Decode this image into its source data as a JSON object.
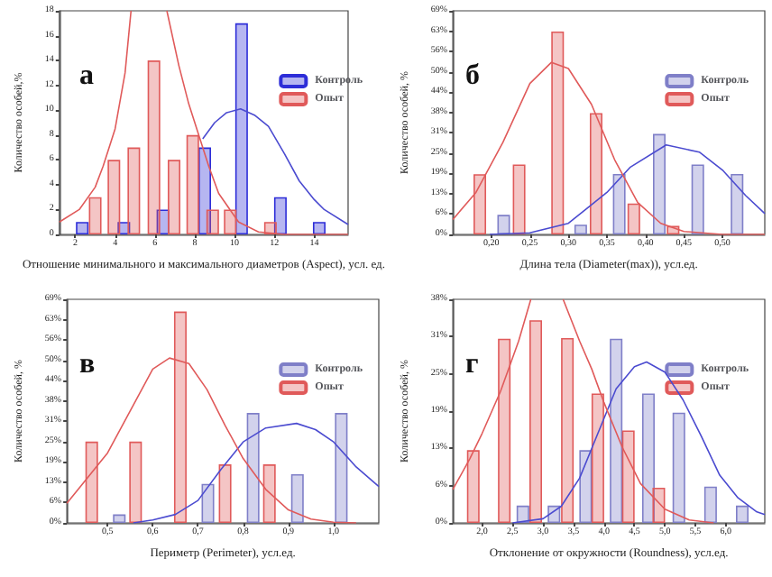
{
  "chart_data": [
    {
      "type": "bar",
      "xlabel": "Отношение минимального и максимального диаметров (Aspect), усл. ед.",
      "ylabel": "Количество особей,%",
      "annotations": [
        "а"
      ],
      "legend": "top right",
      "xlim": [
        1.2,
        15.7
      ],
      "ylim": [
        0,
        18
      ],
      "xticks": [
        2,
        4,
        6,
        8,
        10,
        12,
        14
      ],
      "yticks": [
        0,
        2,
        4,
        6,
        8,
        10,
        12,
        14,
        16,
        18
      ],
      "series": [
        {
          "name": "Контроль",
          "color": "#2d2dd8",
          "x": [
            2.35,
            4.44,
            6.4,
            8.5,
            10.35,
            12.3,
            14.25
          ],
          "values": [
            1,
            1,
            2,
            7,
            17,
            3,
            1
          ]
        },
        {
          "name": "Опыт",
          "color": "#e05a5a",
          "x": [
            3.0,
            3.94,
            4.94,
            5.95,
            6.96,
            7.9,
            8.9,
            9.78,
            11.8
          ],
          "values": [
            3,
            6,
            7,
            14,
            6,
            8,
            2,
            2,
            1
          ]
        },
        {
          "type": "line",
          "color": "#4b4bd0",
          "x": [
            8.4,
            9.0,
            9.6,
            10.3,
            11.0,
            11.7,
            12.5,
            13.25,
            14.0,
            14.5,
            15.7
          ],
          "values": [
            7.7,
            9.0,
            9.8,
            10.1,
            9.6,
            8.7,
            6.5,
            4.3,
            2.8,
            2.0,
            0.8
          ]
        },
        {
          "type": "line",
          "color": "#e05a5a",
          "x": [
            1.2,
            2.2,
            3.0,
            3.4,
            4.0,
            4.5,
            4.8,
            5.7,
            6.6,
            7.2,
            7.7,
            8.2,
            8.7,
            9.2,
            10.2,
            11.2,
            12.5,
            15.7
          ],
          "values": [
            1.0,
            2.0,
            3.8,
            5.5,
            8.5,
            13,
            18,
            null,
            18,
            13.6,
            10.5,
            8,
            5.5,
            3.3,
            1.0,
            0.2,
            0,
            0
          ]
        }
      ]
    },
    {
      "type": "bar",
      "xlabel": "Длина тела (Diameter(max)), усл.ед.",
      "ylabel": "Количество особей, %",
      "annotations": [
        "б"
      ],
      "legend": "top right",
      "xlim": [
        0.15,
        0.555
      ],
      "ylim": [
        0,
        68.75
      ],
      "xticks": [
        {
          "value": 0.2,
          "label": "0,20"
        },
        {
          "value": 0.25,
          "label": "0,25"
        },
        {
          "value": 0.3,
          "label": "0,30"
        },
        {
          "value": 0.35,
          "label": "0,35"
        },
        {
          "value": 0.4,
          "label": "0,40"
        },
        {
          "value": 0.45,
          "label": "0,45"
        },
        {
          "value": 0.5,
          "label": "0,50"
        }
      ],
      "yticks": [
        {
          "value": 0,
          "label": "0%"
        },
        {
          "value": 6.25,
          "label": "6%"
        },
        {
          "value": 12.5,
          "label": "13%"
        },
        {
          "value": 18.75,
          "label": "19%"
        },
        {
          "value": 25,
          "label": "25%"
        },
        {
          "value": 31.25,
          "label": "31%"
        },
        {
          "value": 37.5,
          "label": "38%"
        },
        {
          "value": 43.75,
          "label": "44%"
        },
        {
          "value": 50,
          "label": "50%"
        },
        {
          "value": 56.25,
          "label": "56%"
        },
        {
          "value": 62.5,
          "label": "63%"
        },
        {
          "value": 68.75,
          "label": "69%"
        }
      ],
      "series": [
        {
          "name": "Контроль",
          "color": "#7f7fc8",
          "x": [
            0.216,
            0.316,
            0.366,
            0.418,
            0.468,
            0.519
          ],
          "values": [
            6.0,
            3.0,
            18.6,
            30.9,
            21.5,
            18.6
          ]
        },
        {
          "name": "Опыт",
          "color": "#e05a5a",
          "x": [
            0.185,
            0.236,
            0.286,
            0.336,
            0.385,
            0.436
          ],
          "values": [
            18.5,
            21.5,
            62.4,
            37.3,
            9.5,
            2.6
          ]
        },
        {
          "type": "line",
          "color": "#4b4bd0",
          "x": [
            0.198,
            0.25,
            0.3,
            0.33,
            0.35,
            0.38,
            0.427,
            0.47,
            0.5,
            0.53,
            0.555
          ],
          "values": [
            0,
            0.5,
            3.4,
            9.1,
            12.9,
            20.6,
            27.5,
            25.3,
            19.8,
            12,
            6.4
          ]
        },
        {
          "type": "line",
          "color": "#e05a5a",
          "x": [
            0.15,
            0.18,
            0.215,
            0.25,
            0.278,
            0.3,
            0.33,
            0.36,
            0.39,
            0.42,
            0.45,
            0.5,
            0.555
          ],
          "values": [
            4.6,
            12.9,
            28.3,
            46.4,
            52.9,
            51,
            40,
            23,
            9.8,
            3.4,
            0.9,
            0,
            0
          ]
        }
      ]
    },
    {
      "type": "bar",
      "xlabel": "Периметр (Perimeter), усл.ед.",
      "ylabel": "Количество особей, %",
      "annotations": [
        "в"
      ],
      "legend": "top right",
      "xlim": [
        0.41,
        1.1
      ],
      "ylim": [
        0,
        68.75
      ],
      "xticks": [
        {
          "value": 0.5,
          "label": "0,5"
        },
        {
          "value": 0.6,
          "label": "0,6"
        },
        {
          "value": 0.7,
          "label": "0,7"
        },
        {
          "value": 0.8,
          "label": "0,8"
        },
        {
          "value": 0.9,
          "label": "0,9"
        },
        {
          "value": 1.0,
          "label": "1,0"
        }
      ],
      "yticks": [
        {
          "value": 0,
          "label": "0%"
        },
        {
          "value": 6.25,
          "label": "6%"
        },
        {
          "value": 12.5,
          "label": "13%"
        },
        {
          "value": 18.75,
          "label": "19%"
        },
        {
          "value": 25,
          "label": "25%"
        },
        {
          "value": 31.25,
          "label": "31%"
        },
        {
          "value": 37.5,
          "label": "38%"
        },
        {
          "value": 43.75,
          "label": "44%"
        },
        {
          "value": 50,
          "label": "50%"
        },
        {
          "value": 56.25,
          "label": "56%"
        },
        {
          "value": 62.5,
          "label": "63%"
        },
        {
          "value": 68.75,
          "label": "69%"
        }
      ],
      "series": [
        {
          "name": "Контроль",
          "color": "#7f7fc8",
          "x": [
            0.526,
            0.722,
            0.822,
            0.92,
            1.017
          ],
          "values": [
            2.6,
            12,
            33.8,
            15,
            33.8
          ]
        },
        {
          "name": "Опыт",
          "color": "#e05a5a",
          "x": [
            0.465,
            0.562,
            0.661,
            0.76,
            0.858
          ],
          "values": [
            25,
            25,
            65,
            18,
            18
          ]
        },
        {
          "type": "line",
          "color": "#4b4bd0",
          "x": [
            0.557,
            0.6,
            0.65,
            0.7,
            0.75,
            0.8,
            0.85,
            0.918,
            0.96,
            1.0,
            1.05,
            1.1
          ],
          "values": [
            0,
            0.9,
            2.6,
            6.9,
            16.3,
            24.9,
            29.2,
            30.6,
            28.7,
            24.9,
            17.2,
            11.2
          ]
        },
        {
          "type": "line",
          "color": "#e05a5a",
          "x": [
            0.41,
            0.45,
            0.5,
            0.55,
            0.6,
            0.637,
            0.68,
            0.72,
            0.76,
            0.8,
            0.85,
            0.9,
            0.95,
            1.0,
            1.05
          ],
          "values": [
            6,
            12.9,
            21.5,
            34.4,
            47.3,
            50.7,
            49,
            41,
            30,
            19.8,
            10.3,
            4,
            1.2,
            0.2,
            0
          ]
        }
      ]
    },
    {
      "type": "bar",
      "xlabel": "Отклонение от окружности (Roundness), усл.ед.",
      "ylabel": "Количество особей, %",
      "annotations": [
        "г"
      ],
      "legend": "top right",
      "xlim": [
        1.52,
        6.64
      ],
      "ylim": [
        0,
        37.5
      ],
      "xticks": [
        {
          "value": 2,
          "label": "2,0"
        },
        {
          "value": 2.5,
          "label": "2,5"
        },
        {
          "value": 3,
          "label": "3,0"
        },
        {
          "value": 3.5,
          "label": "3,5"
        },
        {
          "value": 4,
          "label": "4,0"
        },
        {
          "value": 4.5,
          "label": "4,5"
        },
        {
          "value": 5,
          "label": "5,0"
        },
        {
          "value": 5.5,
          "label": "5,5"
        },
        {
          "value": 6,
          "label": "6,0"
        }
      ],
      "yticks": [
        {
          "value": 0,
          "label": "0%"
        },
        {
          "value": 6.25,
          "label": "6%"
        },
        {
          "value": 12.5,
          "label": "13%"
        },
        {
          "value": 18.75,
          "label": "19%"
        },
        {
          "value": 25,
          "label": "25%"
        },
        {
          "value": 31.25,
          "label": "31%"
        },
        {
          "value": 37.5,
          "label": "38%"
        }
      ],
      "series": [
        {
          "name": "Контроль",
          "color": "#7f7fc8",
          "x": [
            2.67,
            3.18,
            3.7,
            4.2,
            4.73,
            5.23,
            5.75,
            6.27
          ],
          "values": [
            2.9,
            2.9,
            12.2,
            30.9,
            21.7,
            18.5,
            6.1,
            2.9
          ]
        },
        {
          "name": "Опыт",
          "color": "#e05a5a",
          "x": [
            1.855,
            2.364,
            2.88,
            3.4,
            3.9,
            4.4,
            4.9
          ],
          "values": [
            12.2,
            30.9,
            34,
            31,
            21.7,
            15.5,
            5.9
          ]
        },
        {
          "type": "line",
          "color": "#4b4bd0",
          "x": [
            2.5,
            3.0,
            3.3,
            3.6,
            3.9,
            4.2,
            4.5,
            4.7,
            5.0,
            5.3,
            5.6,
            5.9,
            6.2,
            6.5,
            6.64
          ],
          "values": [
            0,
            0.7,
            2.8,
            7.5,
            15,
            22.5,
            26.2,
            27,
            25.3,
            20.6,
            14.5,
            8,
            4.2,
            1.9,
            1.4
          ]
        },
        {
          "type": "line",
          "color": "#e05a5a",
          "x": [
            1.52,
            1.8,
            2.0,
            2.3,
            2.6,
            2.8,
            3.05,
            3.33,
            3.6,
            3.8,
            4.0,
            4.3,
            4.6,
            5.0,
            5.4,
            5.8
          ],
          "values": [
            5.6,
            10.8,
            15,
            22,
            30.5,
            37.5,
            null,
            37.5,
            30.5,
            25.8,
            20.2,
            12.7,
            6.6,
            2.3,
            0.5,
            0
          ]
        }
      ]
    }
  ]
}
